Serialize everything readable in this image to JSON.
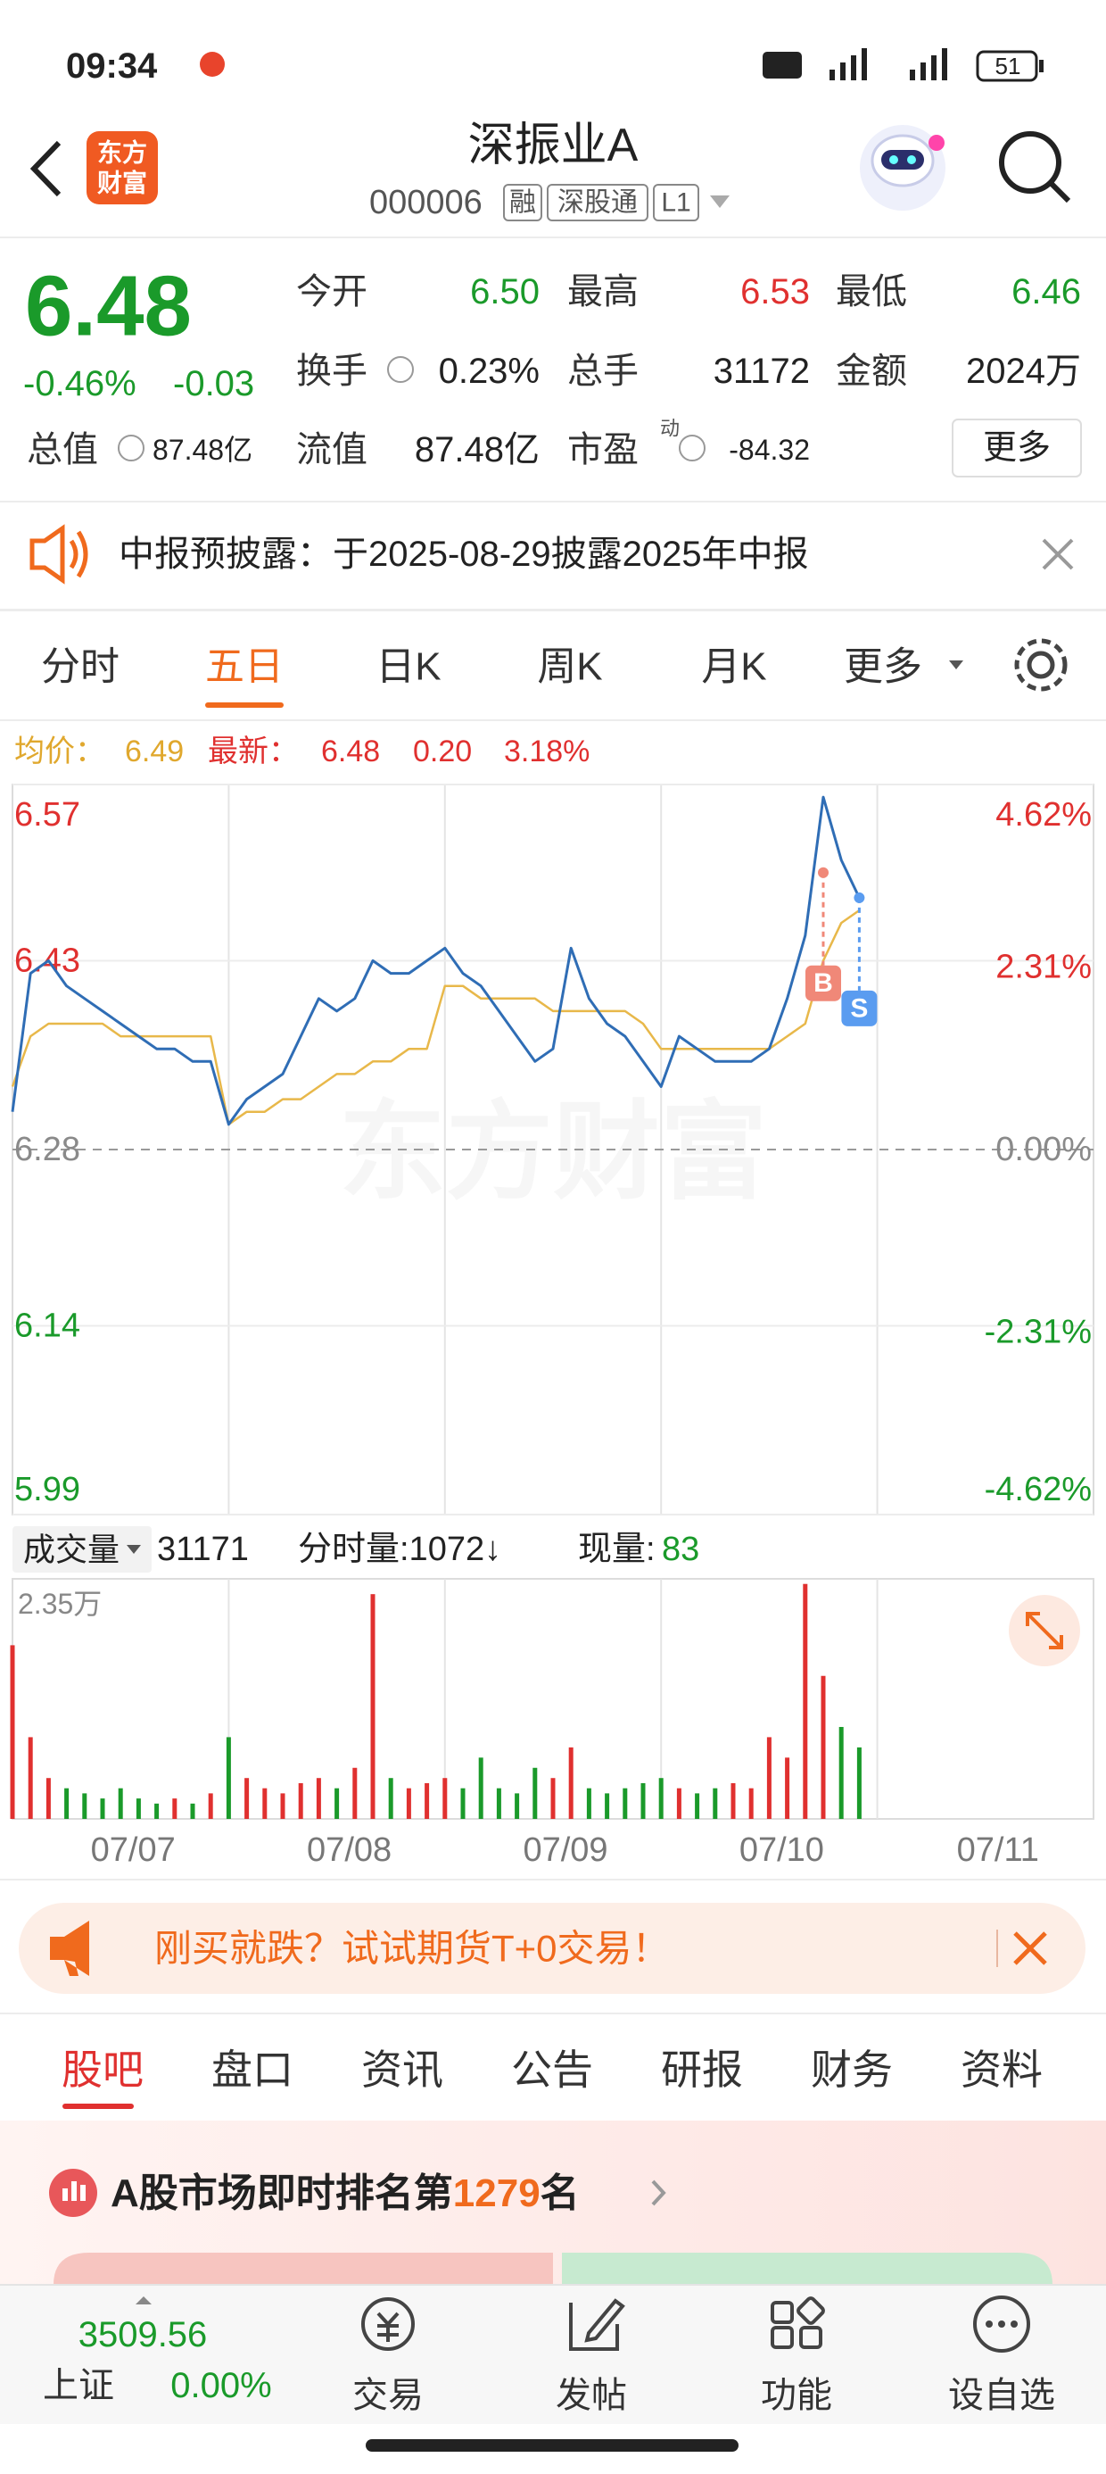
{
  "status_bar": {
    "time": "09:34",
    "battery": "51"
  },
  "header": {
    "logo": [
      "东方",
      "财富"
    ],
    "title": "深振业A",
    "code": "000006",
    "badges": [
      "融",
      "深股通",
      "L1"
    ]
  },
  "quote": {
    "price": "6.48",
    "change_pct": "-0.46%",
    "change": "-0.03",
    "open_label": "今开",
    "open": "6.50",
    "high_label": "最高",
    "high": "6.53",
    "low_label": "最低",
    "low": "6.46",
    "turnover_label": "换手",
    "turnover": "0.23%",
    "volume_label": "总手",
    "volume": "31172",
    "amount_label": "金额",
    "amount": "2024万",
    "mktcap_label": "总值",
    "mktcap": "87.48亿",
    "float_label": "流值",
    "float": "87.48亿",
    "pe_label": "市盈",
    "pe_sup": "动",
    "pe": "-84.32",
    "more": "更多"
  },
  "notice": "中报预披露：于2025-08-29披露2025年中报",
  "chart_tabs": [
    "分时",
    "五日",
    "日K",
    "周K",
    "月K",
    "更多"
  ],
  "chart_data": [
    {
      "type": "line",
      "info": {
        "avg_label": "均价：",
        "avg": "6.49",
        "latest_label": "最新：",
        "latest": "6.48",
        "latest_change": "0.20",
        "latest_pct": "3.18%"
      },
      "watermark": "东方财富",
      "x_labels": [
        "07/07",
        "07/08",
        "07/09",
        "07/10",
        "07/11"
      ],
      "ylim": [
        5.99,
        6.57
      ],
      "yticks": [
        6.57,
        6.43,
        6.28,
        6.14,
        5.99
      ],
      "y2lim": [
        -4.62,
        4.62
      ],
      "y2ticks": [
        {
          "value": 4.62,
          "label": "4.62%"
        },
        {
          "value": 2.31,
          "label": "2.31%"
        },
        {
          "value": 0,
          "label": "0.00%"
        },
        {
          "value": -2.31,
          "label": "-2.31%"
        },
        {
          "value": -4.62,
          "label": "-4.62%"
        }
      ],
      "colors": {
        "up": "#e0302f",
        "down": "#1a9a2a",
        "flat": "#8a8a8a"
      },
      "series": [
        {
          "color": "#2f6db5",
          "values": [
            6.31,
            6.42,
            6.43,
            6.41,
            6.4,
            6.39,
            6.38,
            6.37,
            6.36,
            6.36,
            6.35,
            6.35,
            6.3,
            6.32,
            6.33,
            6.34,
            6.37,
            6.4,
            6.39,
            6.4,
            6.43,
            6.42,
            6.42,
            6.43,
            6.44,
            6.42,
            6.41,
            6.39,
            6.37,
            6.35,
            6.36,
            6.44,
            6.4,
            6.38,
            6.37,
            6.35,
            6.33,
            6.37,
            6.36,
            6.35,
            6.35,
            6.35,
            6.36,
            6.4,
            6.45,
            6.56,
            6.51,
            6.48
          ]
        },
        {
          "color": "#e8b84a",
          "values": [
            6.33,
            6.37,
            6.38,
            6.38,
            6.38,
            6.38,
            6.37,
            6.37,
            6.37,
            6.37,
            6.37,
            6.37,
            6.3,
            6.31,
            6.31,
            6.32,
            6.32,
            6.33,
            6.34,
            6.34,
            6.35,
            6.35,
            6.36,
            6.36,
            6.41,
            6.41,
            6.4,
            6.4,
            6.4,
            6.4,
            6.39,
            6.39,
            6.39,
            6.39,
            6.39,
            6.38,
            6.36,
            6.36,
            6.36,
            6.36,
            6.36,
            6.36,
            6.36,
            6.37,
            6.38,
            6.43,
            6.46,
            6.47
          ]
        }
      ],
      "annotations": [
        {
          "text": "B",
          "value": 6.5,
          "color": "#f08878"
        },
        {
          "text": "S",
          "value": 6.48,
          "color": "#5a9cf0"
        }
      ]
    },
    {
      "type": "bar",
      "header": {
        "name": "成交量",
        "total": "31171",
        "minute": "分时量:1072↓",
        "current_label": "现量:",
        "current": "83"
      },
      "ylim": [
        0,
        23500
      ],
      "yticks": [
        {
          "value": 23500,
          "label": "2.35万"
        }
      ],
      "values": [
        17000,
        8000,
        4000,
        3000,
        2500,
        2000,
        3000,
        2000,
        1500,
        2000,
        1500,
        2500,
        8000,
        4000,
        3000,
        2500,
        3500,
        4000,
        3000,
        5000,
        22000,
        4000,
        3000,
        3500,
        4000,
        3000,
        6000,
        3000,
        2500,
        5000,
        4000,
        7000,
        3000,
        2500,
        3000,
        3500,
        4000,
        3000,
        2500,
        3000,
        3500,
        3000,
        8000,
        6000,
        23000,
        14000,
        9000,
        7000
      ]
    }
  ],
  "ad": "刚买就跌？试试期货T+0交易！",
  "tabs": [
    "股吧",
    "盘口",
    "资讯",
    "公告",
    "研报",
    "财务",
    "资料"
  ],
  "rank": {
    "prefix": "A股市场即时排名第",
    "number": "1279",
    "suffix": "名"
  },
  "bottom_nav": {
    "index_value": "3509.56",
    "index_name": "上证",
    "index_change": "0.00%",
    "items": [
      "交易",
      "发帖",
      "功能",
      "设自选"
    ]
  }
}
